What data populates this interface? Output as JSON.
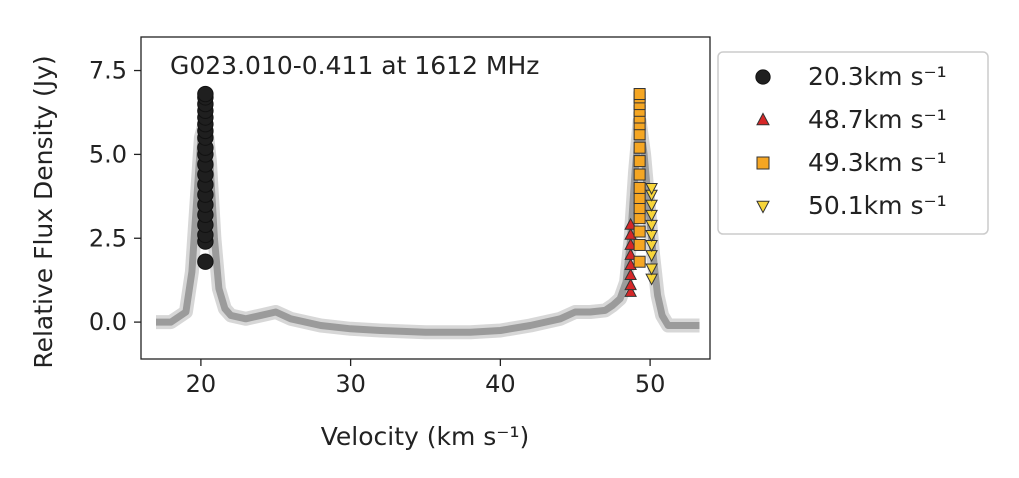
{
  "chart_data": {
    "type": "scatter",
    "title": "G023.010-0.411 at 1612 MHz",
    "xlabel": "Velocity (km s⁻¹)",
    "ylabel": "Relative Flux Density (Jy)",
    "xlim": [
      16,
      54
    ],
    "ylim": [
      -1.1,
      8.5
    ],
    "xticks": [
      20,
      30,
      40,
      50
    ],
    "yticks": [
      0.0,
      2.5,
      5.0,
      7.5
    ],
    "xtick_labels": [
      "20",
      "30",
      "40",
      "50"
    ],
    "ytick_labels": [
      "0.0",
      "2.5",
      "5.0",
      "7.5"
    ],
    "grid": false,
    "legend_position": "outside-right",
    "background_spectrum": {
      "color": "#8c8c8c",
      "description_range": [
        17,
        53.3
      ],
      "x": [
        17.0,
        18.0,
        19.0,
        19.4,
        19.7,
        20.0,
        20.3,
        20.6,
        20.9,
        21.2,
        21.6,
        22.0,
        23.0,
        24.0,
        25.0,
        26.0,
        28.0,
        30.0,
        32.0,
        35.0,
        38.0,
        40.0,
        42.0,
        44.0,
        45.0,
        46.0,
        47.0,
        47.5,
        48.0,
        48.4,
        48.7,
        49.0,
        49.3,
        49.6,
        49.9,
        50.2,
        50.5,
        50.8,
        51.2,
        52.0,
        53.3
      ],
      "y": [
        0.0,
        0.0,
        0.3,
        1.5,
        3.5,
        5.5,
        6.0,
        4.8,
        2.5,
        1.0,
        0.4,
        0.2,
        0.1,
        0.2,
        0.3,
        0.1,
        -0.1,
        -0.2,
        -0.25,
        -0.3,
        -0.3,
        -0.25,
        -0.1,
        0.1,
        0.3,
        0.3,
        0.35,
        0.5,
        0.7,
        1.2,
        2.5,
        4.5,
        6.0,
        5.0,
        3.5,
        2.0,
        0.8,
        0.2,
        -0.1,
        -0.1,
        -0.1
      ]
    },
    "series": [
      {
        "name": "20.3km s⁻¹",
        "marker": "circle",
        "color": "#1f1f1f",
        "x": [
          20.3,
          20.3,
          20.3,
          20.3,
          20.3,
          20.3,
          20.3,
          20.3,
          20.3,
          20.3,
          20.3,
          20.3,
          20.3,
          20.3,
          20.3,
          20.3,
          20.3,
          20.3,
          20.3,
          20.3
        ],
        "y": [
          1.8,
          2.4,
          2.6,
          2.9,
          3.2,
          3.5,
          3.8,
          4.1,
          4.4,
          4.7,
          5.0,
          5.2,
          5.5,
          5.7,
          5.9,
          6.1,
          6.3,
          6.5,
          6.7,
          6.8
        ]
      },
      {
        "name": "48.7km s⁻¹",
        "marker": "triangle-up",
        "color": "#d62728",
        "x": [
          48.7,
          48.7,
          48.7,
          48.7,
          48.7,
          48.7,
          48.7,
          48.7
        ],
        "y": [
          0.9,
          1.1,
          1.4,
          1.7,
          2.0,
          2.3,
          2.6,
          2.9
        ]
      },
      {
        "name": "49.3km s⁻¹",
        "marker": "square",
        "color": "#f5a623",
        "x": [
          49.3,
          49.3,
          49.3,
          49.3,
          49.3,
          49.3,
          49.3,
          49.3,
          49.3,
          49.3,
          49.3,
          49.3,
          49.3,
          49.3,
          49.3,
          49.3,
          49.3
        ],
        "y": [
          1.8,
          2.3,
          2.7,
          3.1,
          3.4,
          3.7,
          4.0,
          4.4,
          4.8,
          5.2,
          5.6,
          5.9,
          6.1,
          6.3,
          6.5,
          6.7,
          6.8
        ]
      },
      {
        "name": "50.1km s⁻¹",
        "marker": "triangle-down",
        "color": "#f7d53a",
        "x": [
          50.1,
          50.1,
          50.1,
          50.1,
          50.1,
          50.1,
          50.1,
          50.1,
          50.1,
          50.1
        ],
        "y": [
          1.3,
          1.6,
          2.0,
          2.3,
          2.6,
          2.9,
          3.2,
          3.5,
          3.8,
          4.0
        ]
      }
    ]
  }
}
